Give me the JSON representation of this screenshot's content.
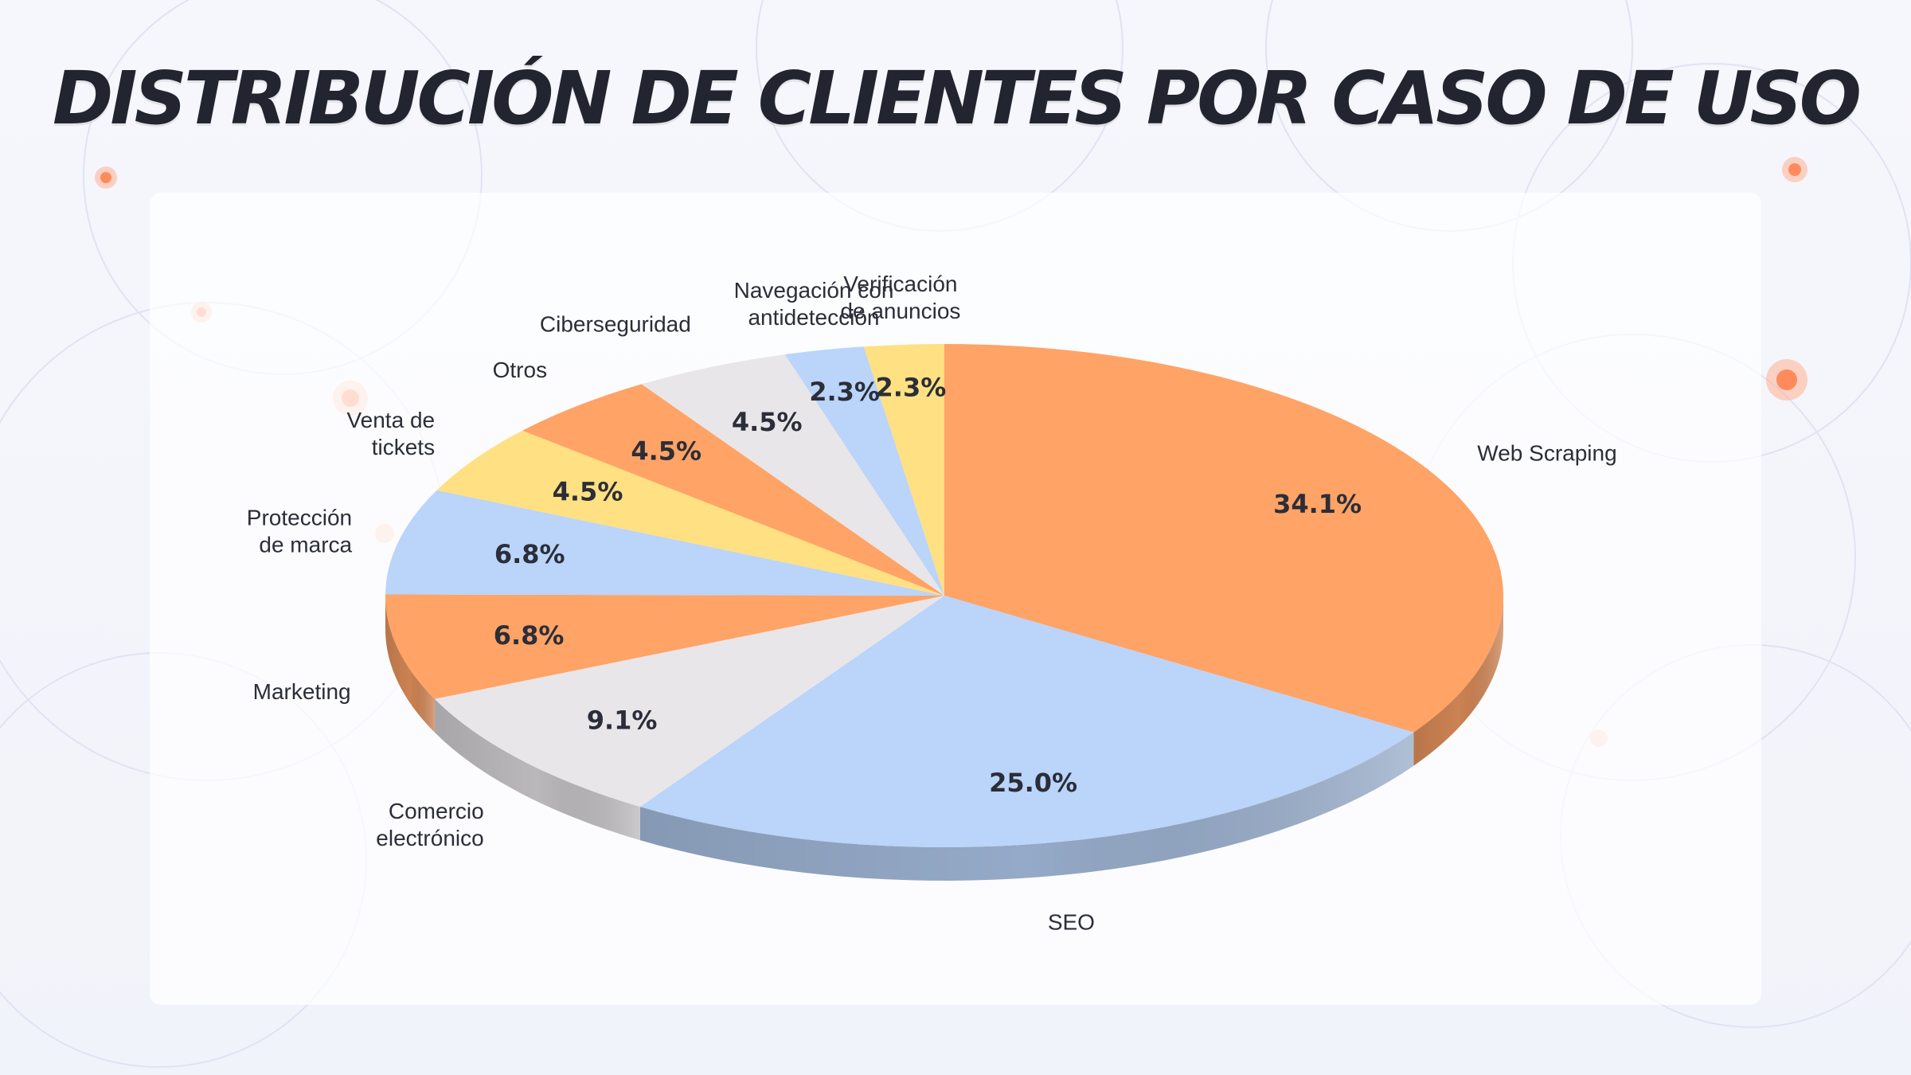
{
  "title": "DISTRIBUCIÓN DE CLIENTES POR CASO DE USO",
  "chart_data": {
    "type": "pie",
    "style": "3d-tilted",
    "start": "top-center",
    "direction": "clockwise",
    "grid": false,
    "legend": "none",
    "slices": [
      {
        "label": [
          "Web Scraping"
        ],
        "value": 34.1,
        "display": "34.1%",
        "color": "#ffa366"
      },
      {
        "label": [
          "SEO"
        ],
        "value": 25.0,
        "display": "25.0%",
        "color": "#bad4fa"
      },
      {
        "label": [
          "Comercio",
          "electrónico"
        ],
        "value": 9.1,
        "display": "9.1%",
        "color": "#e8e6e9"
      },
      {
        "label": [
          "Marketing"
        ],
        "value": 6.8,
        "display": "6.8%",
        "color": "#ffa366"
      },
      {
        "label": [
          "Protección",
          "de marca"
        ],
        "value": 6.8,
        "display": "6.8%",
        "color": "#bad4fa"
      },
      {
        "label": [
          "Venta de",
          "tickets"
        ],
        "value": 4.5,
        "display": "4.5%",
        "color": "#ffe082"
      },
      {
        "label": [
          "Otros"
        ],
        "value": 4.5,
        "display": "4.5%",
        "color": "#ffa366"
      },
      {
        "label": [
          "Ciberseguridad"
        ],
        "value": 4.5,
        "display": "4.5%",
        "color": "#e8e6e9"
      },
      {
        "label": [
          "Navegación con",
          "antidetección"
        ],
        "value": 2.3,
        "display": "2.3%",
        "color": "#bad4fa"
      },
      {
        "label": [
          "Verificación",
          "de anuncios"
        ],
        "value": 2.3,
        "display": "2.3%",
        "color": "#ffe082"
      }
    ]
  }
}
